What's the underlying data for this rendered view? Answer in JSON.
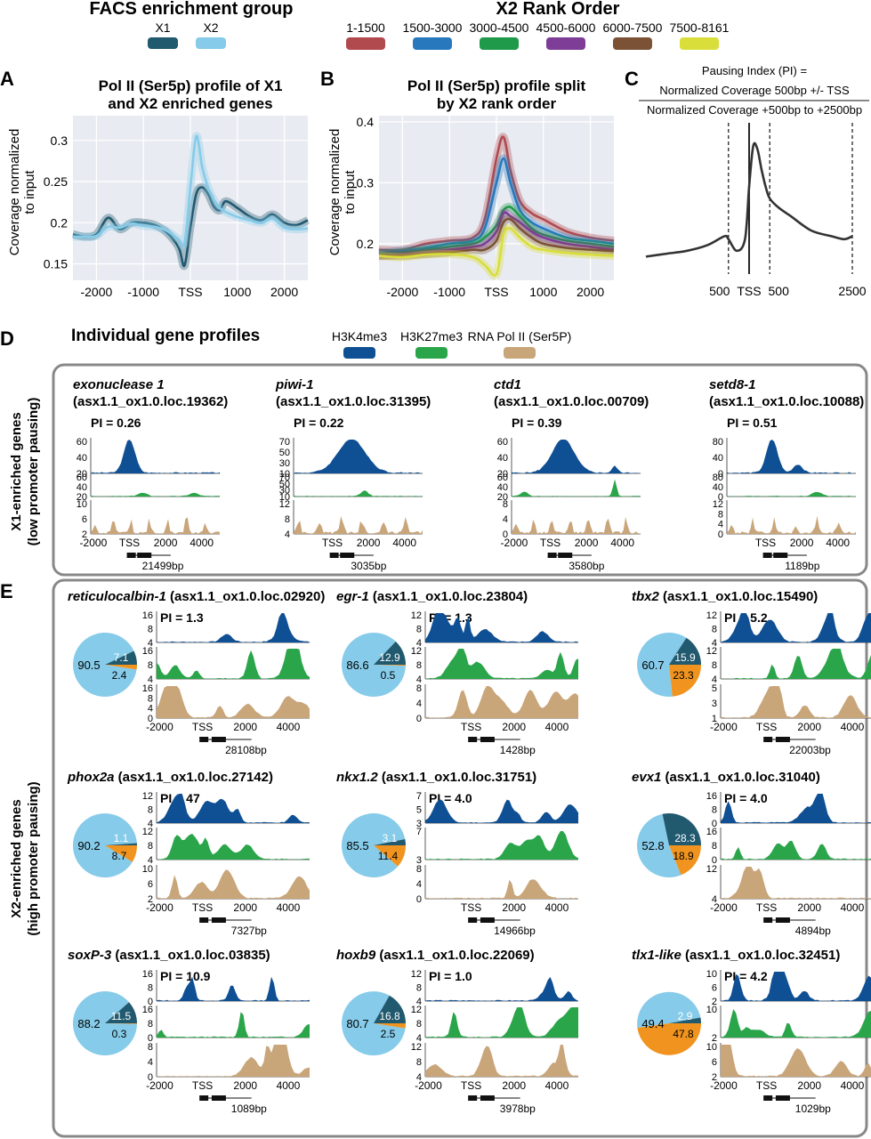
{
  "legends": {
    "facs_title": "FACS enrichment group",
    "facs": [
      {
        "label": "X1",
        "color": "#21596f"
      },
      {
        "label": "X2",
        "color": "#86cbe9"
      }
    ],
    "rank_title": "X2 Rank Order",
    "rank": [
      {
        "label": "1-1500",
        "color": "#b04a4f"
      },
      {
        "label": "1500-3000",
        "color": "#2878bd"
      },
      {
        "label": "3000-4500",
        "color": "#1f9a4a"
      },
      {
        "label": "4500-6000",
        "color": "#7e3d96"
      },
      {
        "label": "6000-7500",
        "color": "#7b5236"
      },
      {
        "label": "7500-8161",
        "color": "#d9de3a"
      }
    ],
    "tracks": [
      {
        "label": "H3K4me3",
        "color": "#0f4f93"
      },
      {
        "label": "H3K27me3",
        "color": "#2aa54a"
      },
      {
        "label": "RNA Pol II (Ser5P)",
        "color": "#c9a57a"
      }
    ]
  },
  "panels": {
    "A": {
      "letter": "A",
      "title1": "Pol II (Ser5p) profile of X1",
      "title2": "and X2 enriched genes",
      "ylabel1": "Coverage normalized",
      "ylabel2": "to input"
    },
    "B": {
      "letter": "B",
      "title1": "Pol II (Ser5p) profile split",
      "title2": "by X2 rank order",
      "ylabel1": "Coverage normalized",
      "ylabel2": "to input"
    },
    "C": {
      "letter": "C",
      "formula_line1": "Pausing Index (PI) =",
      "numerator": "Normalized Coverage 500bp +/- TSS",
      "denominator": "Normalized Coverage +500bp to +2500bp"
    },
    "D": {
      "letter": "D",
      "title": "Individual gene profiles",
      "side1": "X1-enriched genes",
      "side2": "(low promoter pausing)"
    },
    "E": {
      "letter": "E",
      "side1": "X2-enriched genes",
      "side2": "(high promoter pausing)"
    }
  },
  "chart_data": [
    {
      "panel": "A",
      "type": "line",
      "x_ticks": [
        "-2000",
        "-1000",
        "TSS",
        "1000",
        "2000"
      ],
      "x": [
        -2500,
        -2250,
        -2000,
        -1750,
        -1500,
        -1250,
        -1000,
        -750,
        -500,
        -250,
        -125,
        0,
        125,
        250,
        375,
        500,
        625,
        750,
        1000,
        1250,
        1500,
        1750,
        2000,
        2250,
        2500
      ],
      "xlim": [
        -2500,
        2500
      ],
      "ylim": [
        0.13,
        0.33
      ],
      "y_ticks": [
        0.15,
        0.2,
        0.25,
        0.3
      ],
      "series": [
        {
          "name": "X1",
          "color": "#21596f",
          "values": [
            0.186,
            0.183,
            0.186,
            0.206,
            0.192,
            0.2,
            0.2,
            0.197,
            0.188,
            0.17,
            0.148,
            0.195,
            0.235,
            0.243,
            0.235,
            0.22,
            0.215,
            0.226,
            0.218,
            0.208,
            0.203,
            0.21,
            0.2,
            0.197,
            0.203
          ]
        },
        {
          "name": "X2",
          "color": "#86cbe9",
          "values": [
            0.183,
            0.183,
            0.184,
            0.195,
            0.194,
            0.199,
            0.196,
            0.195,
            0.19,
            0.18,
            0.176,
            0.243,
            0.305,
            0.268,
            0.243,
            0.228,
            0.218,
            0.213,
            0.207,
            0.203,
            0.2,
            0.205,
            0.194,
            0.192,
            0.193
          ]
        }
      ]
    },
    {
      "panel": "B",
      "type": "line",
      "x_ticks": [
        "-2000",
        "-1000",
        "TSS",
        "1000",
        "2000"
      ],
      "x": [
        -2500,
        -2000,
        -1500,
        -1000,
        -500,
        -250,
        0,
        150,
        300,
        500,
        750,
        1000,
        1500,
        2000,
        2500
      ],
      "xlim": [
        -2500,
        2500
      ],
      "ylim": [
        0.14,
        0.41
      ],
      "y_ticks": [
        0.2,
        0.3,
        0.4
      ],
      "series": [
        {
          "name": "1-1500",
          "color": "#b04a4f",
          "values": [
            0.19,
            0.19,
            0.2,
            0.205,
            0.21,
            0.24,
            0.34,
            0.375,
            0.32,
            0.27,
            0.25,
            0.24,
            0.22,
            0.21,
            0.205
          ]
        },
        {
          "name": "1500-3000",
          "color": "#2878bd",
          "values": [
            0.185,
            0.188,
            0.193,
            0.2,
            0.205,
            0.225,
            0.3,
            0.34,
            0.3,
            0.255,
            0.235,
            0.225,
            0.21,
            0.205,
            0.2
          ]
        },
        {
          "name": "3000-4500",
          "color": "#1f9a4a",
          "values": [
            0.183,
            0.186,
            0.19,
            0.195,
            0.2,
            0.21,
            0.23,
            0.255,
            0.26,
            0.245,
            0.225,
            0.215,
            0.205,
            0.2,
            0.195
          ]
        },
        {
          "name": "4500-6000",
          "color": "#7e3d96",
          "values": [
            0.18,
            0.183,
            0.186,
            0.19,
            0.195,
            0.2,
            0.22,
            0.25,
            0.245,
            0.235,
            0.22,
            0.21,
            0.2,
            0.195,
            0.19
          ]
        },
        {
          "name": "6000-7500",
          "color": "#7b5236",
          "values": [
            0.18,
            0.18,
            0.183,
            0.186,
            0.19,
            0.19,
            0.205,
            0.235,
            0.24,
            0.225,
            0.21,
            0.2,
            0.193,
            0.19,
            0.188
          ]
        },
        {
          "name": "7500-8161",
          "color": "#d9de3a",
          "values": [
            0.18,
            0.178,
            0.182,
            0.183,
            0.178,
            0.165,
            0.15,
            0.215,
            0.225,
            0.21,
            0.195,
            0.19,
            0.185,
            0.182,
            0.18
          ]
        }
      ]
    },
    {
      "panel": "C",
      "type": "line",
      "x_ticks": [
        "500",
        "TSS",
        "500",
        "2500"
      ],
      "x": [
        -2500,
        -2000,
        -1500,
        -1000,
        -600,
        -500,
        -300,
        -100,
        0,
        100,
        200,
        300,
        400,
        500,
        700,
        1000,
        1500,
        2000,
        2300,
        2500
      ],
      "values": [
        0.17,
        0.175,
        0.18,
        0.19,
        0.205,
        0.2,
        0.18,
        0.2,
        0.29,
        0.36,
        0.355,
        0.32,
        0.29,
        0.27,
        0.255,
        0.24,
        0.215,
        0.205,
        0.2,
        0.205
      ],
      "ylim": [
        0.14,
        0.4
      ]
    }
  ],
  "genes": [
    {
      "panel": "D",
      "name": "exonuclease 1",
      "locus_line": "(asx1.1_ox1.0.loc.19362)",
      "pi": "PI = 0.26",
      "ticks": [
        [
          "60",
          "40",
          "20"
        ],
        [
          "60",
          "40",
          "20"
        ],
        [
          "10",
          "6",
          "2"
        ]
      ],
      "x_ticks": [
        "-2000",
        "TSS",
        "2000",
        "4000"
      ],
      "length": "21499bp",
      "k4_peaks": [
        [
          0.3,
          1,
          0.06
        ]
      ],
      "k27_peaks": [
        [
          0.4,
          0.15,
          0.05
        ],
        [
          0.8,
          0.15,
          0.05
        ]
      ],
      "pol_n": 14
    },
    {
      "panel": "D",
      "name": "piwi-1",
      "locus_line": "(asx1.1_ox1.0.loc.31395)",
      "pi": "PI = 0.22",
      "ticks": [
        [
          "70",
          "50",
          "30",
          "10"
        ],
        [
          "70",
          "50",
          "30",
          "10"
        ],
        [
          "12",
          "8",
          "4"
        ]
      ],
      "x_ticks": [
        "TSS",
        "2000",
        "4000"
      ],
      "length": "3035bp",
      "k4_peaks": [
        [
          0.45,
          1,
          0.15
        ]
      ],
      "k27_peaks": [
        [
          0.55,
          0.25,
          0.04
        ]
      ],
      "pol_n": 12
    },
    {
      "panel": "D",
      "name": "ctd1",
      "locus_line": "(asx1.1_ox1.0.loc.00709)",
      "pi": "PI = 0.39",
      "ticks": [
        [
          "60",
          "40",
          "20"
        ],
        [
          "60",
          "40",
          "20"
        ],
        [
          "8",
          "4",
          "0"
        ]
      ],
      "x_ticks": [
        "-2000",
        "TSS",
        "2000",
        "4000"
      ],
      "length": "3580bp",
      "k4_peaks": [
        [
          0.4,
          1,
          0.12
        ],
        [
          0.8,
          0.2,
          0.03
        ]
      ],
      "k27_peaks": [
        [
          0.1,
          0.2,
          0.04
        ],
        [
          0.8,
          0.8,
          0.02
        ]
      ],
      "pol_n": 14
    },
    {
      "panel": "D",
      "name": "setd8-1",
      "locus_line": "(asx1.1_ox1.0.loc.10088)",
      "pi": "PI = 0.51",
      "ticks": [
        [
          "80",
          "40",
          "0"
        ],
        [
          "80",
          "40",
          "0"
        ],
        [
          "12",
          "8",
          "4",
          "0"
        ]
      ],
      "x_ticks": [
        "TSS",
        "2000",
        "4000"
      ],
      "length": "1189bp",
      "k4_peaks": [
        [
          0.35,
          1,
          0.06
        ],
        [
          0.55,
          0.25,
          0.05
        ]
      ],
      "k27_peaks": [
        [
          0.7,
          0.2,
          0.05
        ]
      ],
      "pol_n": 12
    },
    {
      "panel": "E",
      "name": "reticulocalbin-1",
      "locus_line": "(asx1.1_ox1.0.loc.02920)",
      "pi": "PI = 1.3",
      "ticks": [
        [
          "16",
          "8",
          "4"
        ],
        [
          "16",
          "8",
          "4"
        ],
        [
          "16",
          "8",
          "4",
          "0"
        ]
      ],
      "x_ticks": [
        "-2000",
        "TSS",
        "2000",
        "4000"
      ],
      "length": "28108bp",
      "pie": [
        90.5,
        7.1,
        2.4
      ]
    },
    {
      "panel": "E",
      "name": "egr-1",
      "locus_line": "(asx1.1_ox1.0.loc.23804)",
      "pi": "PI = 1.3",
      "ticks": [
        [
          "12",
          "8",
          "4"
        ],
        [
          "12",
          "8",
          "4"
        ],
        [
          "8",
          "4",
          "0"
        ]
      ],
      "x_ticks": [
        "TSS",
        "2000",
        "4000"
      ],
      "length": "1428bp",
      "pie": [
        86.6,
        12.9,
        0.5
      ]
    },
    {
      "panel": "E",
      "name": "tbx2",
      "locus_line": "(asx1.1_ox1.0.loc.15490)",
      "pi": "PI = 5.2",
      "ticks": [
        [
          "12",
          "8",
          "4"
        ],
        [
          "12",
          "8",
          "4"
        ],
        [
          "5",
          "3",
          "1"
        ]
      ],
      "x_ticks": [
        "-2000",
        "TSS",
        "2000",
        "4000"
      ],
      "length": "22003bp",
      "pie": [
        60.7,
        15.9,
        23.3
      ]
    },
    {
      "panel": "E",
      "name": "phox2a",
      "locus_line": "(asx1.1_ox1.0.loc.27142)",
      "pi": "PI = 47",
      "ticks": [
        [
          "12",
          "8",
          "4"
        ],
        [
          "12",
          "8",
          "4"
        ],
        [
          "10",
          "6",
          "2"
        ]
      ],
      "x_ticks": [
        "-2000",
        "TSS",
        "2000",
        "4000"
      ],
      "length": "7327bp",
      "pie": [
        90.2,
        1.1,
        8.7
      ]
    },
    {
      "panel": "E",
      "name": "nkx1.2",
      "locus_line": "(asx1.1_ox1.0.loc.31751)",
      "pi": "PI = 4.0",
      "ticks": [
        [
          "7",
          "5",
          "3"
        ],
        [
          "7",
          "3"
        ],
        [
          "8",
          "4",
          "0"
        ]
      ],
      "x_ticks": [
        "TSS",
        "2000",
        "4000"
      ],
      "length": "14966bp",
      "pie": [
        85.5,
        3.1,
        11.4
      ]
    },
    {
      "panel": "E",
      "name": "evx1",
      "locus_line": "(asx1.1_ox1.0.loc.31040)",
      "pi": "PI = 4.0",
      "ticks": [
        [
          "16",
          "8",
          "0"
        ],
        [
          "16",
          "8",
          "0"
        ],
        [
          "12",
          "4"
        ]
      ],
      "x_ticks": [
        "-2000",
        "TSS",
        "2000",
        "4000"
      ],
      "length": "4894bp",
      "pie": [
        52.8,
        28.3,
        18.9
      ]
    },
    {
      "panel": "E",
      "name": "soxP-3",
      "locus_line": "(asx1.1_ox1.0.loc.03835)",
      "pi": "PI = 10.9",
      "ticks": [
        [
          "16",
          "8",
          "0"
        ],
        [
          "16",
          "8",
          "0"
        ],
        [
          "8",
          "4",
          "0"
        ]
      ],
      "x_ticks": [
        "-2000",
        "TSS",
        "2000",
        "4000"
      ],
      "length": "1089bp",
      "pie": [
        88.2,
        11.5,
        0.3
      ]
    },
    {
      "panel": "E",
      "name": "hoxb9",
      "locus_line": "(asx1.1_ox1.0.loc.22069)",
      "pi": "PI = 1.0",
      "ticks": [
        [
          "12",
          "8",
          "4"
        ],
        [
          "12",
          "8",
          "4"
        ],
        [
          "12",
          "8",
          "4"
        ]
      ],
      "x_ticks": [
        "-2000",
        "TSS",
        "2000",
        "4000"
      ],
      "length": "3978bp",
      "pie": [
        80.7,
        16.8,
        2.5
      ]
    },
    {
      "panel": "E",
      "name": "tlx1-like",
      "locus_line": "(asx1.1_ox1.0.loc.32451)",
      "pi": "PI = 4.2",
      "ticks": [
        [
          "10",
          "6",
          "2"
        ],
        [
          "10",
          "2"
        ],
        [
          "10",
          "6",
          "2"
        ]
      ],
      "x_ticks": [
        "-2000",
        "TSS",
        "2000",
        "4000"
      ],
      "length": "1029bp",
      "pie": [
        49.4,
        2.9,
        47.8
      ]
    }
  ],
  "pie_colors": [
    "#86cbe9",
    "#21596f",
    "#f0941f"
  ]
}
